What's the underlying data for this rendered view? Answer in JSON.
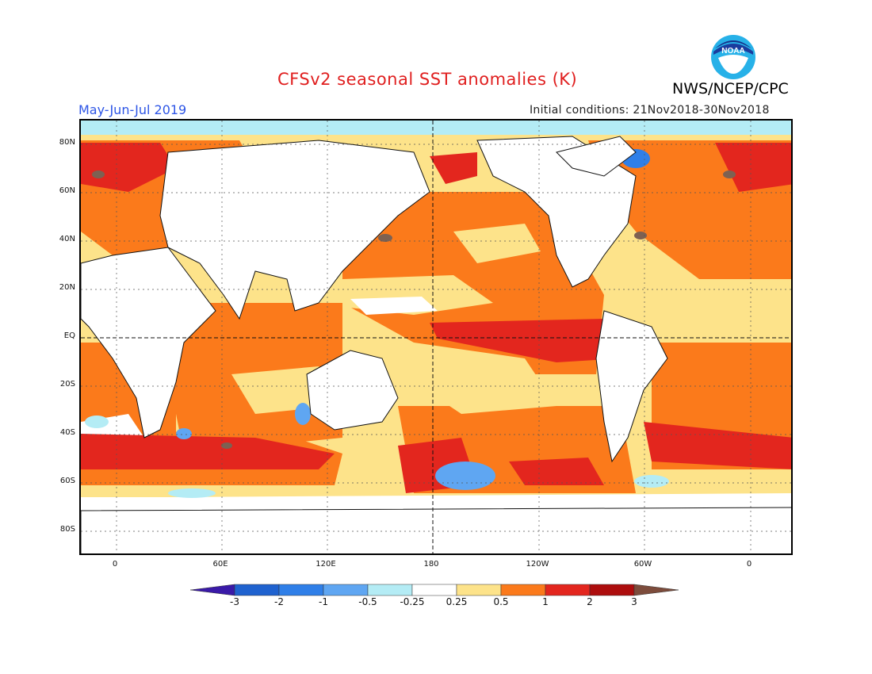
{
  "header": {
    "title": "CFSv2 seasonal SST anomalies (K)",
    "agency": "NWS/NCEP/CPC",
    "period": "May-Jun-Jul 2019",
    "initial_conditions": "Initial conditions: 21Nov2018-30Nov2018",
    "logo_text": "NOAA"
  },
  "map": {
    "lat_labels": [
      "80N",
      "60N",
      "40N",
      "20N",
      "EQ",
      "20S",
      "40S",
      "60S",
      "80S"
    ],
    "lon_labels": [
      "0",
      "60E",
      "120E",
      "180",
      "120W",
      "60W",
      "0"
    ]
  },
  "colorbar": {
    "labels": [
      "-3",
      "-2",
      "-1",
      "-0.5",
      "-0.25",
      "0.25",
      "0.5",
      "1",
      "2",
      "3"
    ],
    "colors": [
      "#3a1aa8",
      "#1f62cf",
      "#2f7fe8",
      "#5fa6f2",
      "#b4ecf5",
      "#ffffff",
      "#fde38a",
      "#fb7a1b",
      "#e3261e",
      "#ad0d0d",
      "#7d4c3c"
    ]
  },
  "colors": {
    "title": "#e01f1f",
    "period": "#2d55e6",
    "strong_warm": "#e3261e",
    "warm": "#fb7a1b",
    "weak_warm": "#fde38a",
    "cool": "#5fa6f2",
    "weak_cool": "#b4ecf5",
    "extreme": "#7d6152"
  }
}
